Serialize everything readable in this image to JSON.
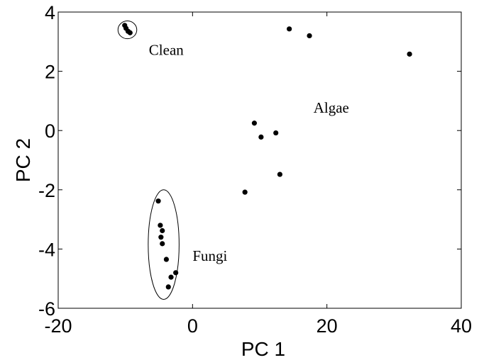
{
  "chart_data": {
    "type": "scatter",
    "title": "",
    "xlabel": "PC 1",
    "ylabel": "PC 2",
    "xlim": [
      -20,
      40
    ],
    "ylim": [
      -6,
      4
    ],
    "xticks": [
      -20,
      0,
      20,
      40
    ],
    "yticks": [
      -6,
      -4,
      -2,
      0,
      2,
      4
    ],
    "grid": false,
    "point_color": "#000000",
    "points": [
      {
        "x": -10.1,
        "y": 3.55
      },
      {
        "x": -9.9,
        "y": 3.45
      },
      {
        "x": -9.6,
        "y": 3.35
      },
      {
        "x": -9.3,
        "y": 3.3
      },
      {
        "x": 14.4,
        "y": 3.43
      },
      {
        "x": 17.4,
        "y": 3.2
      },
      {
        "x": 32.3,
        "y": 2.58
      },
      {
        "x": 9.2,
        "y": 0.25
      },
      {
        "x": 10.2,
        "y": -0.22
      },
      {
        "x": 12.4,
        "y": -0.08
      },
      {
        "x": 13.0,
        "y": -1.48
      },
      {
        "x": 7.8,
        "y": -2.08
      },
      {
        "x": -5.1,
        "y": -2.38
      },
      {
        "x": -4.8,
        "y": -3.2
      },
      {
        "x": -4.5,
        "y": -3.38
      },
      {
        "x": -4.7,
        "y": -3.6
      },
      {
        "x": -4.5,
        "y": -3.82
      },
      {
        "x": -3.9,
        "y": -4.35
      },
      {
        "x": -2.5,
        "y": -4.8
      },
      {
        "x": -3.2,
        "y": -4.95
      },
      {
        "x": -3.6,
        "y": -5.28
      }
    ],
    "groups": [
      {
        "label": "Clean",
        "label_x": -6.5,
        "label_y": 2.55,
        "ellipse": {
          "cx": -9.7,
          "cy": 3.4,
          "rx": 1.4,
          "ry": 0.3
        }
      },
      {
        "label": "Algae",
        "label_x": 18,
        "label_y": 0.6,
        "ellipse": null
      },
      {
        "label": "Fungi",
        "label_x": 0,
        "label_y": -4.4,
        "ellipse": {
          "cx": -4.3,
          "cy": -3.85,
          "rx": 2.3,
          "ry": 1.85
        }
      }
    ]
  }
}
